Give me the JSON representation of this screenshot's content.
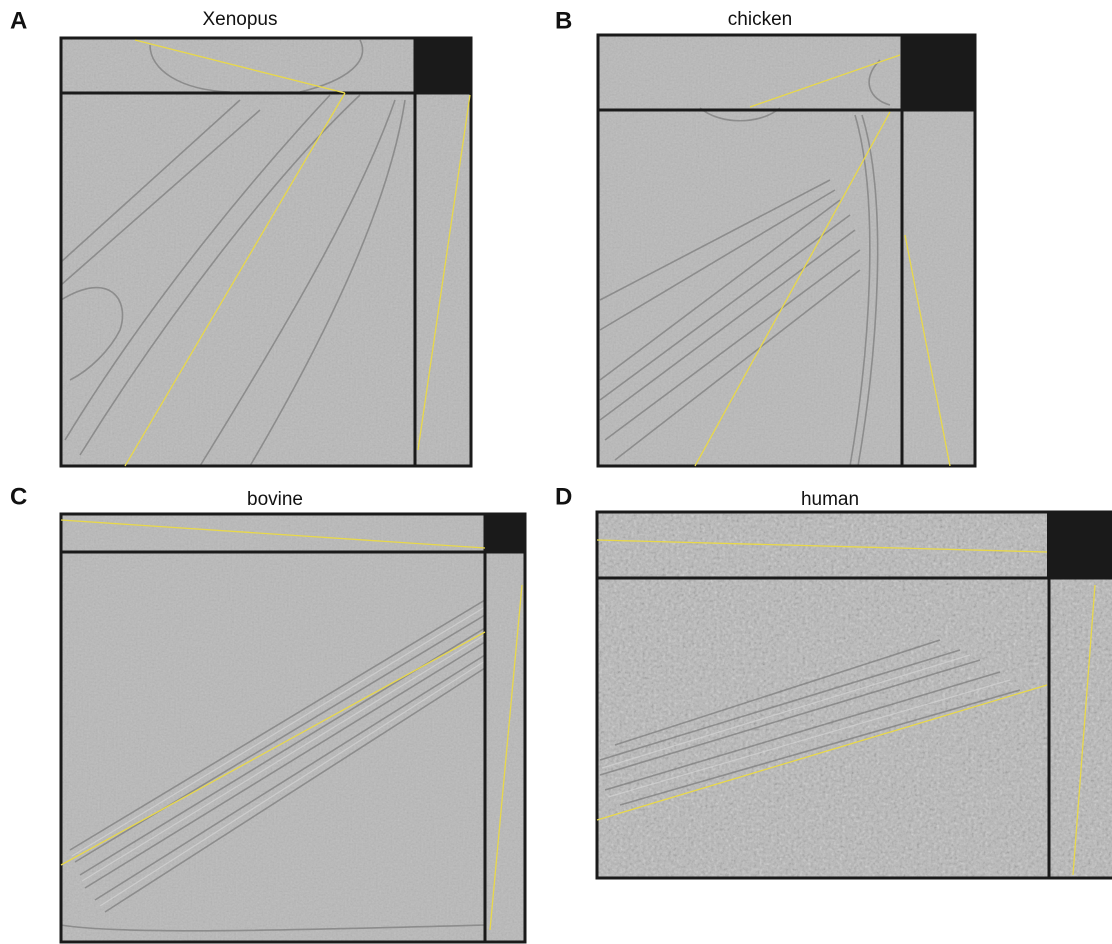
{
  "panels": [
    {
      "label": "A",
      "title": "Xenopus"
    },
    {
      "label": "B",
      "title": "chicken"
    },
    {
      "label": "C",
      "title": "bovine"
    },
    {
      "label": "D",
      "title": "human"
    }
  ]
}
